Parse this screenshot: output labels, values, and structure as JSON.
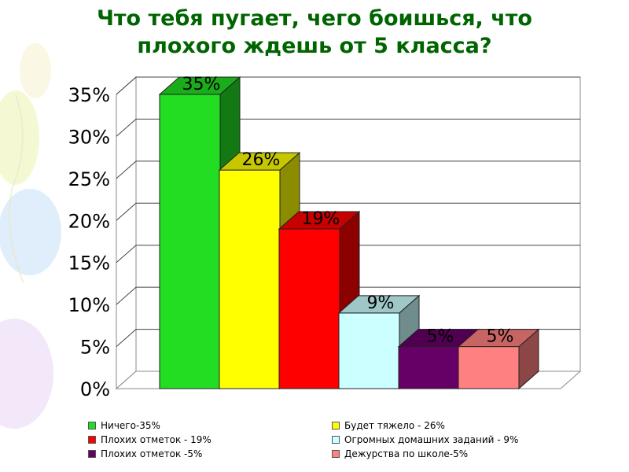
{
  "title": {
    "line1": "Что тебя пугает, чего боишься, что",
    "line2": "плохого ждешь от 5 класса?"
  },
  "chart_data": {
    "type": "bar",
    "title": "Что тебя пугает, чего боишься, что плохого ждешь от 5 класса?",
    "categories": [
      "Ничего-35%",
      "Будет тяжело - 26%",
      "Плохих отметок - 19%",
      "Огромных домашних заданий - 9%",
      "Плохих отметок -5%",
      "Дежурства по школе-5%"
    ],
    "values": [
      35,
      26,
      19,
      9,
      5,
      5
    ],
    "data_labels": [
      "35%",
      "26%",
      "19%",
      "9%",
      "5%",
      "5%"
    ],
    "colors": [
      "#22dd22",
      "#ffff00",
      "#ff0000",
      "#ccffff",
      "#660066",
      "#ff8080"
    ],
    "ylim": [
      0,
      35
    ],
    "yticks": [
      0,
      5,
      10,
      15,
      20,
      25,
      30,
      35
    ],
    "ytick_labels": [
      "0%",
      "5%",
      "10%",
      "15%",
      "20%",
      "25%",
      "30%",
      "35%"
    ],
    "grid": true,
    "style": "3d",
    "legend_position": "bottom",
    "xlabel": "",
    "ylabel": ""
  },
  "legend": {
    "items": [
      {
        "label": "Ничего-35%",
        "color": "#22dd22"
      },
      {
        "label": "Будет тяжело - 26%",
        "color": "#ffff00"
      },
      {
        "label": "Плохих отметок - 19%",
        "color": "#ff0000"
      },
      {
        "label": "Огромных домашних заданий - 9%",
        "color": "#ccffff"
      },
      {
        "label": "Плохих отметок -5%",
        "color": "#660066"
      },
      {
        "label": "Дежурства по школе-5%",
        "color": "#ff8080"
      }
    ]
  }
}
